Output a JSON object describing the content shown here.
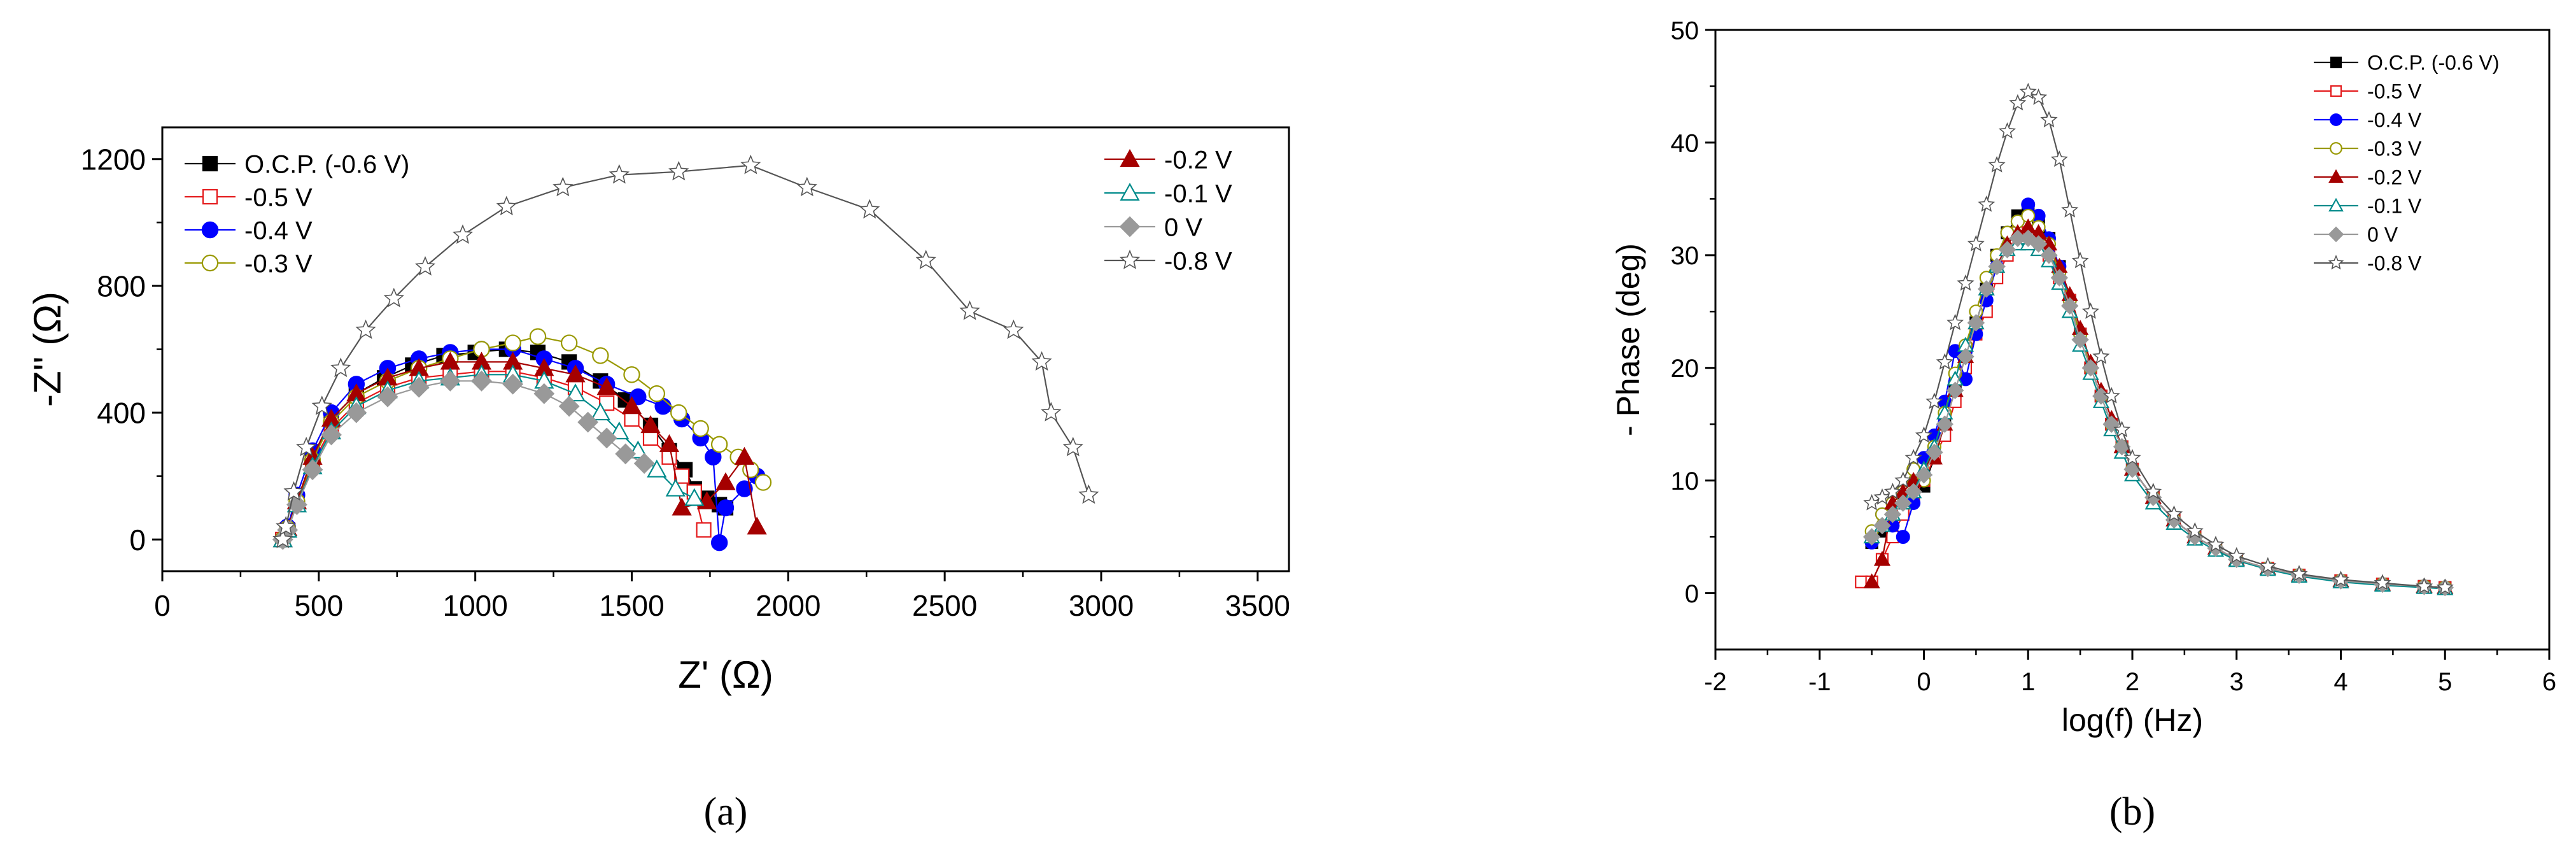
{
  "chart_data": [
    {
      "type": "scatter",
      "panel_label": "(a)",
      "title": "",
      "xlabel": "Z' (Ω)",
      "ylabel": "-Z'' (Ω)",
      "xlim": [
        0,
        3600
      ],
      "ylim": [
        -100,
        1300
      ],
      "xticks": [
        0,
        500,
        1000,
        1500,
        2000,
        2500,
        3000,
        3500
      ],
      "yticks": [
        0,
        400,
        800,
        1200
      ],
      "grid": false,
      "legend_position": "top-left and top-right, two columns inside plot",
      "series": [
        {
          "name": "O.C.P. (-0.6 V)",
          "color": "#000000",
          "marker": "square-filled",
          "x": [
            385,
            400,
            430,
            480,
            540,
            620,
            710,
            800,
            900,
            1000,
            1100,
            1200,
            1300,
            1400,
            1480,
            1560,
            1620,
            1670,
            1700,
            1740,
            1780,
            1800
          ],
          "y": [
            0,
            30,
            120,
            260,
            380,
            460,
            510,
            550,
            580,
            590,
            600,
            590,
            560,
            500,
            440,
            360,
            280,
            220,
            160,
            130,
            110,
            100
          ]
        },
        {
          "name": "-0.5 V",
          "color": "#e41a1c",
          "marker": "square-open",
          "x": [
            385,
            400,
            430,
            480,
            540,
            620,
            720,
            820,
            920,
            1020,
            1120,
            1220,
            1320,
            1420,
            1500,
            1560,
            1620,
            1660,
            1700,
            1730
          ],
          "y": [
            0,
            30,
            110,
            240,
            350,
            430,
            480,
            510,
            520,
            530,
            530,
            510,
            480,
            430,
            380,
            320,
            260,
            200,
            150,
            30
          ]
        },
        {
          "name": "-0.4 V",
          "color": "#0000ff",
          "marker": "circle-filled",
          "x": [
            385,
            400,
            430,
            480,
            540,
            620,
            720,
            820,
            920,
            1020,
            1120,
            1220,
            1320,
            1420,
            1520,
            1600,
            1660,
            1720,
            1760,
            1780,
            1800,
            1860,
            1900
          ],
          "y": [
            0,
            40,
            140,
            280,
            400,
            490,
            540,
            570,
            590,
            600,
            600,
            570,
            540,
            490,
            450,
            420,
            380,
            320,
            260,
            -10,
            100,
            160,
            200
          ]
        },
        {
          "name": "-0.3 V",
          "color": "#999900",
          "marker": "circle-open",
          "x": [
            385,
            400,
            430,
            480,
            540,
            620,
            720,
            820,
            920,
            1020,
            1120,
            1200,
            1300,
            1400,
            1500,
            1580,
            1650,
            1720,
            1780,
            1840,
            1880,
            1920
          ],
          "y": [
            0,
            35,
            120,
            250,
            370,
            450,
            500,
            540,
            570,
            600,
            620,
            640,
            620,
            580,
            520,
            460,
            400,
            350,
            300,
            260,
            220,
            180
          ]
        },
        {
          "name": "-0.2 V",
          "color": "#a50000",
          "marker": "triangle-filled",
          "x": [
            385,
            400,
            430,
            480,
            540,
            620,
            720,
            820,
            920,
            1020,
            1120,
            1220,
            1320,
            1420,
            1500,
            1560,
            1620,
            1660,
            1740,
            1800,
            1860,
            1900
          ],
          "y": [
            0,
            35,
            120,
            260,
            380,
            460,
            510,
            540,
            560,
            560,
            560,
            540,
            520,
            480,
            420,
            360,
            300,
            100,
            120,
            180,
            260,
            40
          ]
        },
        {
          "name": "-0.1 V",
          "color": "#008b8b",
          "marker": "triangle-open",
          "x": [
            385,
            400,
            430,
            480,
            540,
            620,
            720,
            820,
            920,
            1020,
            1120,
            1220,
            1320,
            1400,
            1460,
            1520,
            1580,
            1640,
            1700
          ],
          "y": [
            0,
            30,
            110,
            230,
            340,
            420,
            470,
            500,
            510,
            520,
            520,
            500,
            460,
            400,
            340,
            280,
            220,
            160,
            130
          ]
        },
        {
          "name": "0 V",
          "color": "#999999",
          "marker": "diamond-filled",
          "x": [
            385,
            400,
            430,
            480,
            540,
            620,
            720,
            820,
            920,
            1020,
            1120,
            1220,
            1300,
            1360,
            1420,
            1480,
            1540
          ],
          "y": [
            0,
            30,
            110,
            220,
            330,
            400,
            450,
            480,
            500,
            500,
            490,
            460,
            420,
            370,
            320,
            270,
            240
          ]
        },
        {
          "name": "-0.8 V",
          "color": "#555555",
          "marker": "star-open",
          "x": [
            385,
            395,
            420,
            460,
            510,
            570,
            650,
            740,
            840,
            960,
            1100,
            1280,
            1460,
            1650,
            1880,
            2060,
            2260,
            2440,
            2580,
            2720,
            2810,
            2840,
            2910,
            2960
          ],
          "y": [
            0,
            40,
            150,
            290,
            420,
            540,
            660,
            760,
            860,
            960,
            1050,
            1110,
            1150,
            1160,
            1180,
            1110,
            1040,
            880,
            720,
            660,
            560,
            400,
            290,
            140
          ]
        }
      ]
    },
    {
      "type": "scatter",
      "panel_label": "(b)",
      "title": "",
      "xlabel": "log(f) (Hz)",
      "ylabel": "- Phase (deg)",
      "xlim": [
        -2,
        6
      ],
      "ylim": [
        -5,
        50
      ],
      "xticks": [
        -2,
        -1,
        0,
        1,
        2,
        3,
        4,
        5,
        6
      ],
      "yticks": [
        0,
        10,
        20,
        30,
        40,
        50
      ],
      "grid": false,
      "legend_position": "top-right",
      "series": [
        {
          "name": "O.C.P. (-0.6 V)",
          "color": "#000000",
          "marker": "square-filled",
          "x": [
            -0.5,
            -0.4,
            -0.3,
            -0.2,
            -0.1,
            0,
            0.1,
            0.2,
            0.3,
            0.4,
            0.5,
            0.6,
            0.7,
            0.8,
            0.9,
            1.0,
            1.1,
            1.2,
            1.3,
            1.4,
            1.5,
            1.6,
            1.7,
            1.8,
            1.9,
            2.0,
            2.2,
            2.4,
            2.6,
            2.8,
            3.0,
            3.3,
            3.6,
            4.0,
            4.4,
            4.8,
            5.0
          ],
          "y": [
            4.5,
            5.5,
            7,
            8,
            8.5,
            9.5,
            12,
            15,
            18,
            21,
            24,
            27,
            30,
            32,
            33.5,
            34,
            33,
            31.5,
            29,
            26,
            23,
            20,
            17.5,
            15,
            13,
            11,
            8.5,
            6.5,
            5,
            4,
            3,
            2.2,
            1.6,
            1.1,
            0.8,
            0.6,
            0.5
          ]
        },
        {
          "name": "-0.5 V",
          "color": "#e41a1c",
          "marker": "square-open",
          "x": [
            -0.6,
            -0.5,
            -0.4,
            -0.3,
            -0.2,
            -0.1,
            0,
            0.1,
            0.2,
            0.3,
            0.4,
            0.5,
            0.6,
            0.7,
            0.8,
            0.9,
            1.0,
            1.1,
            1.2,
            1.3,
            1.4,
            1.5,
            1.6,
            1.7,
            1.8,
            1.9,
            2.0,
            2.2,
            2.4,
            2.6,
            2.8,
            3.0,
            3.3,
            3.6,
            4.0,
            4.4,
            4.8,
            5.0
          ],
          "y": [
            1,
            1,
            3,
            5,
            7,
            8.5,
            10,
            12,
            14,
            17,
            20,
            23,
            25,
            28,
            30,
            32,
            32,
            31,
            30,
            28,
            26,
            23,
            20,
            17.5,
            15,
            13,
            11,
            8.5,
            6.5,
            5,
            4,
            3,
            2.2,
            1.6,
            1.1,
            0.8,
            0.6,
            0.5
          ]
        },
        {
          "name": "-0.4 V",
          "color": "#0000ff",
          "marker": "circle-filled",
          "x": [
            -0.5,
            -0.4,
            -0.3,
            -0.2,
            -0.1,
            0,
            0.1,
            0.2,
            0.3,
            0.4,
            0.5,
            0.6,
            0.7,
            0.8,
            0.9,
            1.0,
            1.1,
            1.2,
            1.3,
            1.4,
            1.5,
            1.6,
            1.7,
            1.8,
            1.9,
            2.0,
            2.2,
            2.4,
            2.6,
            2.8,
            3.0,
            3.3,
            3.6,
            4.0,
            4.4,
            4.8,
            5.0
          ],
          "y": [
            4.5,
            7,
            6,
            5,
            8,
            12,
            14,
            17,
            21.5,
            19,
            23,
            26,
            29,
            32,
            33,
            34.5,
            33.5,
            31.5,
            29,
            26,
            23,
            20,
            17.5,
            15,
            13,
            11,
            8.5,
            6.5,
            5,
            4,
            3,
            2.2,
            1.6,
            1.1,
            0.8,
            0.6,
            0.5
          ]
        },
        {
          "name": "-0.3 V",
          "color": "#999900",
          "marker": "circle-open",
          "x": [
            -0.5,
            -0.4,
            -0.3,
            -0.2,
            -0.1,
            0,
            0.1,
            0.2,
            0.3,
            0.4,
            0.5,
            0.6,
            0.7,
            0.8,
            0.9,
            1.0,
            1.1,
            1.2,
            1.3,
            1.4,
            1.5,
            1.6,
            1.7,
            1.8,
            1.9,
            2.0,
            2.2,
            2.4,
            2.6,
            2.8,
            3.0,
            3.3,
            3.6,
            4.0,
            4.4,
            4.8,
            5.0
          ],
          "y": [
            5.5,
            7,
            8,
            9,
            11,
            10,
            13,
            16,
            19.5,
            22,
            25,
            28,
            30,
            32,
            33,
            33.5,
            32.5,
            31,
            28.5,
            26,
            23,
            20,
            17.5,
            15,
            13,
            11,
            8.5,
            6.5,
            5,
            4,
            3,
            2.2,
            1.6,
            1.1,
            0.8,
            0.6,
            0.5
          ]
        },
        {
          "name": "-0.2 V",
          "color": "#a50000",
          "marker": "triangle-filled",
          "x": [
            -0.5,
            -0.4,
            -0.3,
            -0.2,
            -0.1,
            0,
            0.1,
            0.2,
            0.3,
            0.4,
            0.5,
            0.6,
            0.7,
            0.8,
            0.9,
            1.0,
            1.1,
            1.2,
            1.3,
            1.4,
            1.5,
            1.6,
            1.7,
            1.8,
            1.9,
            2.0,
            2.2,
            2.4,
            2.6,
            2.8,
            3.0,
            3.3,
            3.6,
            4.0,
            4.4,
            4.8,
            5.0
          ],
          "y": [
            1,
            3,
            8,
            9,
            10,
            11,
            12,
            15,
            18,
            21,
            24,
            27,
            29,
            31,
            32,
            32.5,
            32,
            31,
            29,
            26.5,
            23.5,
            20.5,
            18,
            15.5,
            13,
            11,
            8.5,
            6.5,
            5,
            4,
            3,
            2.2,
            1.6,
            1.1,
            0.8,
            0.6,
            0.5
          ]
        },
        {
          "name": "-0.1 V",
          "color": "#008b8b",
          "marker": "triangle-open",
          "x": [
            -0.5,
            -0.4,
            -0.3,
            -0.2,
            -0.1,
            0,
            0.1,
            0.2,
            0.3,
            0.4,
            0.5,
            0.6,
            0.7,
            0.8,
            0.9,
            1.0,
            1.1,
            1.2,
            1.3,
            1.4,
            1.5,
            1.6,
            1.7,
            1.8,
            1.9,
            2.0,
            2.2,
            2.4,
            2.6,
            2.8,
            3.0,
            3.3,
            3.6,
            4.0,
            4.4,
            4.8,
            5.0
          ],
          "y": [
            5,
            6,
            7,
            8,
            9,
            11,
            13,
            16,
            19,
            22,
            24,
            27,
            29,
            30.5,
            31,
            31,
            30.5,
            29.5,
            27.5,
            25,
            22,
            19.5,
            17,
            14.5,
            12.5,
            10.5,
            8,
            6.2,
            4.8,
            3.8,
            2.9,
            2.1,
            1.5,
            1.0,
            0.7,
            0.5,
            0.4
          ]
        },
        {
          "name": "0 V",
          "color": "#999999",
          "marker": "diamond-filled",
          "x": [
            -0.5,
            -0.4,
            -0.3,
            -0.2,
            -0.1,
            0,
            0.1,
            0.2,
            0.3,
            0.4,
            0.5,
            0.6,
            0.7,
            0.8,
            0.9,
            1.0,
            1.1,
            1.2,
            1.3,
            1.4,
            1.5,
            1.6,
            1.7,
            1.8,
            1.9,
            2.0,
            2.2,
            2.4,
            2.6,
            2.8,
            3.0,
            3.3,
            3.6,
            4.0,
            4.4,
            4.8,
            5.0
          ],
          "y": [
            5,
            6,
            7,
            8,
            9,
            10.5,
            12.5,
            15,
            18,
            21,
            24,
            27,
            29,
            30.5,
            31.5,
            31.5,
            31,
            30,
            28,
            25.5,
            22.5,
            20,
            17.5,
            15,
            13,
            11,
            8.5,
            6.5,
            5,
            4,
            3,
            2.2,
            1.6,
            1.1,
            0.8,
            0.6,
            0.5
          ]
        },
        {
          "name": "-0.8 V",
          "color": "#555555",
          "marker": "star-open",
          "x": [
            -0.5,
            -0.4,
            -0.3,
            -0.2,
            -0.1,
            0,
            0.1,
            0.2,
            0.3,
            0.4,
            0.5,
            0.6,
            0.7,
            0.8,
            0.9,
            1.0,
            1.1,
            1.2,
            1.3,
            1.4,
            1.5,
            1.6,
            1.7,
            1.8,
            1.9,
            2.0,
            2.2,
            2.4,
            2.6,
            2.8,
            3.0,
            3.3,
            3.6,
            4.0,
            4.4,
            4.8,
            5.0
          ],
          "y": [
            8,
            8.5,
            9,
            10,
            12,
            14,
            17,
            20.5,
            24,
            27.5,
            31,
            34.5,
            38,
            41,
            43.5,
            44.5,
            44,
            42,
            38.5,
            34,
            29.5,
            25,
            21,
            17.5,
            14.5,
            12,
            9,
            7,
            5.5,
            4.3,
            3.3,
            2.4,
            1.7,
            1.2,
            0.9,
            0.6,
            0.5
          ]
        }
      ]
    }
  ]
}
